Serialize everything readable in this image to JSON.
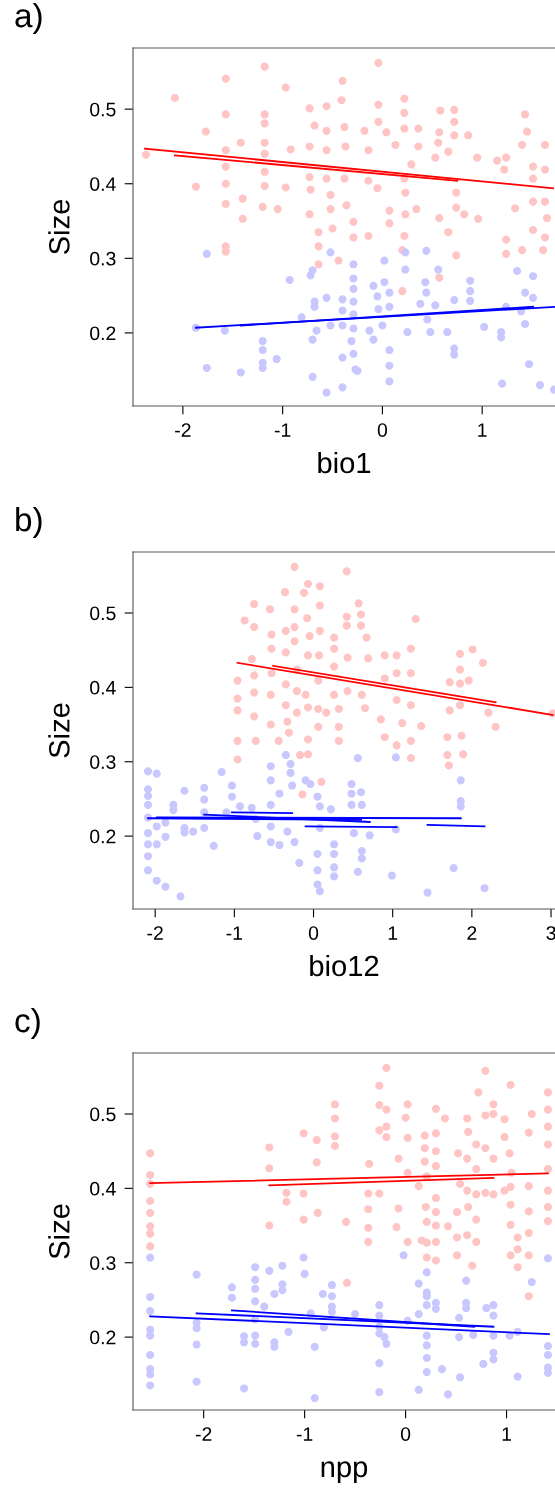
{
  "chart_data": [
    {
      "type": "scatter",
      "title": "a)",
      "xlabel": "bio1",
      "ylabel": "Size",
      "xlim": [
        -2.5,
        1.73
      ],
      "ylim": [
        0.102,
        0.582
      ],
      "xticks": [
        -2,
        -1,
        0,
        1
      ],
      "yticks": [
        0.2,
        0.3,
        0.4,
        0.5
      ],
      "grid": false,
      "legend": false,
      "series": [
        {
          "marker": "circle",
          "color": "#ffc4c4",
          "x": [
            -2.37,
            -2.08,
            -1.77,
            -1.87,
            -1.57,
            -1.57,
            -1.57,
            -1.57,
            -1.57,
            -1.57,
            -1.57,
            -1.57,
            -1.42,
            -1.4,
            -1.4,
            -1.18,
            -1.18,
            -1.18,
            -1.18,
            -1.18,
            -1.18,
            -1.18,
            -1.2,
            -0.97,
            -0.92,
            -0.97,
            -1.05,
            -0.73,
            -0.68,
            -0.73,
            -0.73,
            -0.72,
            -0.73,
            -0.64,
            -0.64,
            -0.64,
            -0.56,
            -0.56,
            -0.56,
            -0.56,
            -0.52,
            -0.52,
            -0.5,
            -0.44,
            -0.4,
            -0.41,
            -0.38,
            -0.37,
            -0.38,
            -0.36,
            -0.29,
            -0.29,
            -0.18,
            -0.14,
            -0.14,
            -0.14,
            -0.04,
            -0.04,
            -0.04,
            0.04,
            -0.05,
            0.07,
            0.07,
            0.13,
            0.22,
            0.22,
            0.22,
            0.22,
            0.23,
            0.23,
            0.22,
            0.2,
            0.36,
            0.36,
            0.29,
            0.34,
            0.58,
            0.57,
            0.56,
            0.53,
            0.66,
            0.72,
            0.72,
            0.72,
            0.74,
            0.74,
            0.57,
            0.66,
            0.74,
            0.86,
            0.95,
            0.82,
            0.96,
            1.15,
            1.24,
            1.22,
            1.33,
            1.24,
            1.24,
            1.43,
            1.45,
            1.4,
            1.51,
            1.51,
            1.51,
            1.51,
            1.4,
            1.63,
            1.63,
            1.63,
            1.65,
            1.63,
            1.61,
            0.57,
            0.2
          ],
          "values": [
            0.439,
            0.515,
            0.47,
            0.396,
            0.541,
            0.493,
            0.445,
            0.423,
            0.4,
            0.373,
            0.316,
            0.309,
            0.455,
            0.38,
            0.353,
            0.557,
            0.493,
            0.481,
            0.455,
            0.44,
            0.416,
            0.397,
            0.369,
            0.529,
            0.446,
            0.395,
            0.366,
            0.501,
            0.478,
            0.45,
            0.409,
            0.392,
            0.359,
            0.335,
            0.316,
            0.292,
            0.504,
            0.471,
            0.445,
            0.407,
            0.385,
            0.366,
            0.34,
            0.297,
            0.538,
            0.512,
            0.476,
            0.45,
            0.407,
            0.371,
            0.349,
            0.328,
            0.471,
            0.445,
            0.404,
            0.33,
            0.562,
            0.506,
            0.483,
            0.469,
            0.394,
            0.364,
            0.347,
            0.452,
            0.514,
            0.495,
            0.474,
            0.407,
            0.388,
            0.359,
            0.33,
            0.311,
            0.474,
            0.45,
            0.426,
            0.366,
            0.498,
            0.469,
            0.455,
            0.435,
            0.443,
            0.499,
            0.483,
            0.465,
            0.388,
            0.368,
            0.354,
            0.335,
            0.304,
            0.465,
            0.435,
            0.359,
            0.353,
            0.431,
            0.435,
            0.419,
            0.367,
            0.325,
            0.306,
            0.493,
            0.47,
            0.452,
            0.423,
            0.407,
            0.376,
            0.338,
            0.311,
            0.452,
            0.419,
            0.376,
            0.354,
            0.328,
            0.311,
            0.274,
            0.256
          ]
        },
        {
          "marker": "circle",
          "color": "#c8c8ff",
          "x": [
            -1.76,
            -1.87,
            -1.76,
            -1.58,
            -1.42,
            -1.2,
            -1.2,
            -1.2,
            -1.2,
            -1.06,
            -0.93,
            -0.72,
            -0.7,
            -0.68,
            -0.68,
            -0.81,
            -0.66,
            -0.7,
            -0.7,
            -0.56,
            -0.52,
            -0.52,
            -0.56,
            -0.4,
            -0.4,
            -0.4,
            -0.4,
            -0.4,
            -0.29,
            -0.29,
            -0.29,
            -0.29,
            -0.29,
            -0.29,
            -0.31,
            -0.29,
            -0.27,
            -0.25,
            -0.09,
            0.02,
            0.02,
            -0.05,
            -0.04,
            0.0,
            -0.13,
            -0.09,
            0.07,
            0.07,
            0.07,
            0.07,
            0.07,
            0.23,
            0.23,
            0.25,
            0.38,
            0.44,
            0.43,
            0.44,
            0.45,
            0.48,
            0.56,
            0.53,
            0.65,
            0.72,
            0.72,
            0.72,
            0.88,
            0.88,
            0.88,
            1.02,
            1.19,
            1.19,
            1.2,
            1.24,
            1.35,
            1.43,
            1.43,
            1.39,
            1.47,
            1.51,
            1.51,
            1.58,
            1.72
          ],
          "values": [
            0.306,
            0.207,
            0.153,
            0.203,
            0.147,
            0.189,
            0.177,
            0.16,
            0.153,
            0.165,
            0.271,
            0.277,
            0.284,
            0.242,
            0.235,
            0.221,
            0.203,
            0.191,
            0.141,
            0.247,
            0.308,
            0.21,
            0.12,
            0.245,
            0.23,
            0.21,
            0.167,
            0.127,
            0.292,
            0.273,
            0.259,
            0.242,
            0.225,
            0.206,
            0.189,
            0.172,
            0.151,
            0.149,
            0.263,
            0.297,
            0.268,
            0.249,
            0.232,
            0.21,
            0.203,
            0.191,
            0.254,
            0.235,
            0.177,
            0.156,
            0.135,
            0.308,
            0.285,
            0.201,
            0.239,
            0.31,
            0.268,
            0.254,
            0.218,
            0.201,
            0.285,
            0.237,
            0.201,
            0.244,
            0.179,
            0.171,
            0.27,
            0.256,
            0.243,
            0.208,
            0.201,
            0.194,
            0.132,
            0.235,
            0.283,
            0.254,
            0.212,
            0.229,
            0.158,
            0.276,
            0.247,
            0.13,
            0.124
          ]
        },
        {
          "type": "line",
          "color": "#ff0000",
          "x": [
            -2.38,
            1.71
          ],
          "values": [
            0.447,
            0.394
          ]
        },
        {
          "type": "line",
          "color": "#ff0000",
          "x": [
            -2.08,
            0.75
          ],
          "values": [
            0.438,
            0.404
          ]
        },
        {
          "type": "line",
          "color": "#0000ff",
          "x": [
            -1.87,
            1.73
          ],
          "values": [
            0.207,
            0.235
          ]
        },
        {
          "type": "line",
          "color": "#0000ff",
          "x": [
            -1.42,
            1.51
          ],
          "values": [
            0.21,
            0.235
          ]
        }
      ]
    },
    {
      "type": "scatter",
      "title": "b)",
      "xlabel": "bio12",
      "ylabel": "Size",
      "xlim": [
        -2.28,
        3.05
      ],
      "ylim": [
        0.102,
        0.582
      ],
      "xticks": [
        -2,
        -1,
        0,
        1,
        2,
        3
      ],
      "yticks": [
        0.2,
        0.3,
        0.4,
        0.5
      ],
      "grid": false,
      "legend": false,
      "series": [
        {
          "marker": "circle",
          "color": "#ffc4c4",
          "x": [
            -0.96,
            -0.96,
            -0.96,
            -0.96,
            -0.96,
            -0.87,
            -0.75,
            -0.75,
            -0.78,
            -0.75,
            -0.75,
            -0.75,
            -0.73,
            -0.55,
            -0.53,
            -0.53,
            -0.53,
            -0.54,
            -0.54,
            -0.44,
            -0.36,
            -0.35,
            -0.35,
            -0.35,
            -0.35,
            -0.33,
            -0.31,
            -0.24,
            -0.24,
            -0.24,
            -0.24,
            -0.21,
            -0.21,
            -0.21,
            -0.17,
            -0.12,
            -0.07,
            -0.08,
            -0.05,
            -0.07,
            -0.1,
            -0.07,
            -0.07,
            -0.07,
            -0.14,
            0.08,
            0.08,
            0.08,
            0.07,
            0.06,
            0.06,
            0.06,
            0.16,
            0.1,
            0.26,
            0.26,
            0.26,
            0.26,
            0.32,
            0.32,
            0.32,
            0.42,
            0.42,
            0.42,
            0.43,
            0.43,
            0.57,
            0.6,
            0.6,
            0.67,
            0.69,
            0.61,
            0.65,
            0.85,
            0.9,
            0.9,
            0.9,
            1.05,
            1.05,
            1.05,
            1.05,
            1.12,
            1.23,
            1.23,
            1.23,
            1.23,
            1.23,
            1.29,
            1.36,
            1.69,
            1.69,
            1.71,
            1.72,
            1.72,
            1.85,
            1.85,
            1.85,
            1.85,
            1.87,
            1.89,
            1.96,
            2.01,
            2.14,
            2.21,
            2.3,
            3.02
          ],
          "values": [
            0.409,
            0.385,
            0.369,
            0.328,
            0.303,
            0.49,
            0.512,
            0.481,
            0.438,
            0.416,
            0.393,
            0.361,
            0.328,
            0.505,
            0.471,
            0.452,
            0.419,
            0.39,
            0.35,
            0.328,
            0.528,
            0.476,
            0.447,
            0.404,
            0.376,
            0.354,
            0.339,
            0.562,
            0.505,
            0.481,
            0.462,
            0.424,
            0.395,
            0.366,
            0.309,
            0.527,
            0.539,
            0.493,
            0.469,
            0.443,
            0.39,
            0.373,
            0.33,
            0.31,
            0.256,
            0.536,
            0.51,
            0.476,
            0.443,
            0.409,
            0.371,
            0.347,
            0.366,
            0.273,
            0.467,
            0.452,
            0.428,
            0.39,
            0.371,
            0.347,
            0.328,
            0.556,
            0.495,
            0.483,
            0.44,
            0.395,
            0.513,
            0.498,
            0.483,
            0.467,
            0.439,
            0.39,
            0.372,
            0.357,
            0.443,
            0.412,
            0.333,
            0.443,
            0.419,
            0.383,
            0.322,
            0.352,
            0.452,
            0.419,
            0.376,
            0.328,
            0.305,
            0.492,
            0.348,
            0.333,
            0.309,
            0.295,
            0.407,
            0.369,
            0.445,
            0.424,
            0.405,
            0.376,
            0.335,
            0.31,
            0.409,
            0.451,
            0.433,
            0.366,
            0.347,
            0.365
          ]
        },
        {
          "marker": "circle",
          "color": "#c8c8ff",
          "x": [
            -2.09,
            -2.09,
            -2.09,
            -2.09,
            -2.09,
            -2.09,
            -2.09,
            -2.09,
            -2.09,
            -1.98,
            -1.98,
            -1.98,
            -1.98,
            -1.87,
            -1.87,
            -1.87,
            -1.77,
            -1.77,
            -1.68,
            -1.63,
            -1.63,
            -1.63,
            -1.52,
            -1.38,
            -1.38,
            -1.38,
            -1.38,
            -1.26,
            -1.16,
            -1.03,
            -1.03,
            -1.1,
            -0.93,
            -0.78,
            -0.71,
            -0.73,
            -0.54,
            -0.54,
            -0.54,
            -0.54,
            -0.54,
            -0.43,
            -0.43,
            -0.35,
            -0.29,
            -0.29,
            -0.27,
            -0.33,
            -0.24,
            -0.18,
            -0.1,
            -0.04,
            0.05,
            0.08,
            0.08,
            0.05,
            0.05,
            0.05,
            0.08,
            0.22,
            0.26,
            0.26,
            0.26,
            0.26,
            0.48,
            0.48,
            0.48,
            0.51,
            0.56,
            0.6,
            0.61,
            0.61,
            0.61,
            0.56,
            0.71,
            0.99,
            1.04,
            1.04,
            1.44,
            1.77,
            1.86,
            1.86,
            1.86,
            2.16
          ],
          "values": [
            0.287,
            0.263,
            0.254,
            0.242,
            0.225,
            0.204,
            0.189,
            0.173,
            0.154,
            0.284,
            0.213,
            0.189,
            0.14,
            0.218,
            0.199,
            0.132,
            0.242,
            0.235,
            0.119,
            0.261,
            0.211,
            0.205,
            0.206,
            0.265,
            0.249,
            0.232,
            0.211,
            0.187,
            0.286,
            0.268,
            0.253,
            0.232,
            0.24,
            0.238,
            0.2,
            0.223,
            0.294,
            0.275,
            0.242,
            0.213,
            0.192,
            0.257,
            0.188,
            0.309,
            0.297,
            0.285,
            0.268,
            0.206,
            0.192,
            0.164,
            0.275,
            0.27,
            0.253,
            0.24,
            0.211,
            0.176,
            0.154,
            0.135,
            0.126,
            0.236,
            0.189,
            0.176,
            0.158,
            0.146,
            0.27,
            0.257,
            0.242,
            0.204,
            0.305,
            0.259,
            0.242,
            0.18,
            0.17,
            0.152,
            0.201,
            0.147,
            0.306,
            0.209,
            0.124,
            0.157,
            0.275,
            0.247,
            0.24,
            0.13
          ]
        },
        {
          "type": "line",
          "color": "#ff0000",
          "x": [
            -0.96,
            3.02
          ],
          "values": [
            0.433,
            0.363
          ]
        },
        {
          "type": "line",
          "color": "#ff0000",
          "x": [
            -0.51,
            2.3
          ],
          "values": [
            0.429,
            0.38
          ]
        },
        {
          "type": "line",
          "color": "#0000ff",
          "x": [
            -2.09,
            0.6
          ],
          "values": [
            0.224,
            0.222
          ]
        },
        {
          "type": "line",
          "color": "#0000ff",
          "x": [
            -1.98,
            1.86
          ],
          "values": [
            0.225,
            0.224
          ]
        },
        {
          "type": "line",
          "color": "#0000ff",
          "x": [
            -1.38,
            0.71
          ],
          "values": [
            0.229,
            0.219
          ]
        },
        {
          "type": "line",
          "color": "#0000ff",
          "x": [
            -1.03,
            -0.27
          ],
          "values": [
            0.232,
            0.231
          ]
        },
        {
          "type": "line",
          "color": "#0000ff",
          "x": [
            -0.1,
            1.05
          ],
          "values": [
            0.213,
            0.212
          ]
        },
        {
          "type": "line",
          "color": "#0000ff",
          "x": [
            1.44,
            2.16
          ],
          "values": [
            0.215,
            0.213
          ]
        }
      ]
    },
    {
      "type": "scatter",
      "title": "c)",
      "xlabel": "npp",
      "ylabel": "Size",
      "xlim": [
        -2.7,
        1.48
      ],
      "ylim": [
        0.102,
        0.582
      ],
      "xticks": [
        -2,
        -1,
        0,
        1
      ],
      "yticks": [
        0.2,
        0.3,
        0.4,
        0.5
      ],
      "grid": false,
      "legend": false,
      "series": [
        {
          "marker": "circle",
          "color": "#ffc4c4",
          "x": [
            -2.53,
            -2.53,
            -2.53,
            -2.53,
            -2.53,
            -2.53,
            -2.53,
            -2.53,
            -1.35,
            -1.35,
            -1.35,
            -1.18,
            -1.18,
            -1.01,
            -1.01,
            -1.01,
            -0.88,
            -0.88,
            -0.87,
            -0.7,
            -0.7,
            -0.7,
            -0.7,
            -0.59,
            -0.58,
            -0.37,
            -0.37,
            -0.37,
            -0.37,
            -0.36,
            -0.26,
            -0.26,
            -0.26,
            -0.26,
            -0.19,
            -0.19,
            -0.19,
            -0.19,
            -0.07,
            -0.07,
            -0.09,
            0.02,
            0.0,
            0.02,
            0.02,
            0.02,
            0.13,
            0.16,
            0.19,
            0.19,
            0.19,
            0.21,
            0.2,
            0.21,
            0.21,
            0.21,
            0.3,
            0.3,
            0.3,
            0.3,
            0.3,
            0.3,
            0.3,
            0.3,
            0.3,
            0.39,
            0.42,
            0.51,
            0.52,
            0.54,
            0.51,
            0.51,
            0.61,
            0.62,
            0.61,
            0.61,
            0.62,
            0.61,
            0.66,
            0.7,
            0.7,
            0.7,
            0.7,
            0.7,
            0.72,
            0.79,
            0.79,
            0.79,
            0.79,
            0.87,
            0.87,
            0.87,
            0.87,
            0.98,
            0.98,
            0.98,
            1.03,
            1.05,
            1.04,
            1.04,
            1.04,
            1.04,
            1.04,
            1.11,
            1.11,
            1.11,
            1.22,
            1.22,
            1.22,
            1.22,
            1.22,
            1.22,
            1.25,
            1.41,
            1.41,
            1.41,
            1.41,
            1.41,
            1.41,
            1.41,
            1.41
          ],
          "values": [
            0.447,
            0.418,
            0.406,
            0.383,
            0.367,
            0.349,
            0.339,
            0.322,
            0.455,
            0.427,
            0.35,
            0.394,
            0.382,
            0.474,
            0.393,
            0.358,
            0.465,
            0.435,
            0.367,
            0.513,
            0.494,
            0.47,
            0.457,
            0.355,
            0.273,
            0.393,
            0.372,
            0.347,
            0.328,
            0.433,
            0.538,
            0.512,
            0.478,
            0.393,
            0.562,
            0.506,
            0.483,
            0.469,
            0.44,
            0.373,
            0.348,
            0.513,
            0.495,
            0.468,
            0.421,
            0.328,
            0.403,
            0.33,
            0.471,
            0.454,
            0.436,
            0.416,
            0.375,
            0.355,
            0.327,
            0.307,
            0.507,
            0.474,
            0.45,
            0.43,
            0.387,
            0.368,
            0.35,
            0.328,
            0.303,
            0.494,
            0.349,
            0.31,
            0.447,
            0.406,
            0.368,
            0.334,
            0.494,
            0.476,
            0.44,
            0.397,
            0.375,
            0.337,
            0.296,
            0.459,
            0.426,
            0.392,
            0.358,
            0.328,
            0.529,
            0.558,
            0.498,
            0.454,
            0.394,
            0.513,
            0.5,
            0.44,
            0.392,
            0.493,
            0.469,
            0.397,
            0.447,
            0.421,
            0.402,
            0.378,
            0.351,
            0.31,
            0.539,
            0.334,
            0.294,
            0.318,
            0.475,
            0.403,
            0.369,
            0.34,
            0.31,
            0.255,
            0.5,
            0.529,
            0.506,
            0.483,
            0.459,
            0.426,
            0.397,
            0.375,
            0.356
          ]
        },
        {
          "marker": "circle",
          "color": "#c8c8ff",
          "x": [
            -2.53,
            -2.53,
            -2.53,
            -2.53,
            -2.53,
            -2.53,
            -2.53,
            -2.53,
            -2.53,
            -2.07,
            -2.07,
            -2.07,
            -2.07,
            -2.07,
            -1.72,
            -1.72,
            -1.6,
            -1.6,
            -1.6,
            -1.49,
            -1.49,
            -1.49,
            -1.49,
            -1.49,
            -1.49,
            -1.49,
            -1.4,
            -1.35,
            -1.3,
            -1.3,
            -1.3,
            -1.22,
            -1.22,
            -1.22,
            -1.16,
            -1.01,
            -1.0,
            -0.94,
            -0.9,
            -0.9,
            -0.82,
            -0.81,
            -0.73,
            -0.73,
            -0.73,
            -0.73,
            -0.5,
            -0.26,
            -0.26,
            -0.26,
            -0.26,
            -0.26,
            -0.26,
            -0.21,
            -0.19,
            -0.02,
            0.02,
            0.13,
            0.13,
            0.13,
            0.21,
            0.21,
            0.21,
            0.21,
            0.21,
            0.21,
            0.21,
            0.21,
            0.3,
            0.3,
            0.36,
            0.42,
            0.53,
            0.53,
            0.54,
            0.6,
            0.6,
            0.6,
            0.67,
            0.77,
            0.8,
            0.87,
            0.87,
            0.87,
            0.87,
            0.87,
            1.03,
            1.11,
            1.11,
            1.25,
            1.41,
            1.41,
            1.41,
            1.41,
            1.41
          ],
          "values": [
            0.307,
            0.254,
            0.235,
            0.21,
            0.202,
            0.176,
            0.157,
            0.15,
            0.135,
            0.284,
            0.219,
            0.212,
            0.19,
            0.14,
            0.267,
            0.253,
            0.201,
            0.193,
            0.131,
            0.294,
            0.277,
            0.265,
            0.248,
            0.224,
            0.202,
            0.191,
            0.241,
            0.289,
            0.258,
            0.193,
            0.187,
            0.296,
            0.271,
            0.263,
            0.207,
            0.307,
            0.285,
            0.232,
            0.187,
            0.118,
            0.258,
            0.213,
            0.27,
            0.255,
            0.241,
            0.234,
            0.231,
            0.243,
            0.229,
            0.214,
            0.205,
            0.165,
            0.126,
            0.2,
            0.191,
            0.31,
            0.222,
            0.272,
            0.231,
            0.129,
            0.287,
            0.26,
            0.255,
            0.243,
            0.202,
            0.189,
            0.172,
            0.153,
            0.246,
            0.238,
            0.157,
            0.123,
            0.226,
            0.2,
            0.146,
            0.276,
            0.246,
            0.239,
            0.203,
            0.164,
            0.239,
            0.243,
            0.229,
            0.202,
            0.179,
            0.17,
            0.202,
            0.147,
            0.207,
            0.274,
            0.306,
            0.188,
            0.176,
            0.159,
            0.152
          ]
        },
        {
          "type": "line",
          "color": "#ff0000",
          "x": [
            -2.53,
            1.41
          ],
          "values": [
            0.407,
            0.42
          ]
        },
        {
          "type": "line",
          "color": "#ff0000",
          "x": [
            -1.35,
            0.87
          ],
          "values": [
            0.404,
            0.414
          ]
        },
        {
          "type": "line",
          "color": "#0000ff",
          "x": [
            -2.53,
            1.42
          ],
          "values": [
            0.228,
            0.204
          ]
        },
        {
          "type": "line",
          "color": "#0000ff",
          "x": [
            -2.07,
            0.87
          ],
          "values": [
            0.232,
            0.214
          ]
        },
        {
          "type": "line",
          "color": "#0000ff",
          "x": [
            -1.72,
            0.68
          ],
          "values": [
            0.236,
            0.214
          ]
        }
      ]
    }
  ]
}
